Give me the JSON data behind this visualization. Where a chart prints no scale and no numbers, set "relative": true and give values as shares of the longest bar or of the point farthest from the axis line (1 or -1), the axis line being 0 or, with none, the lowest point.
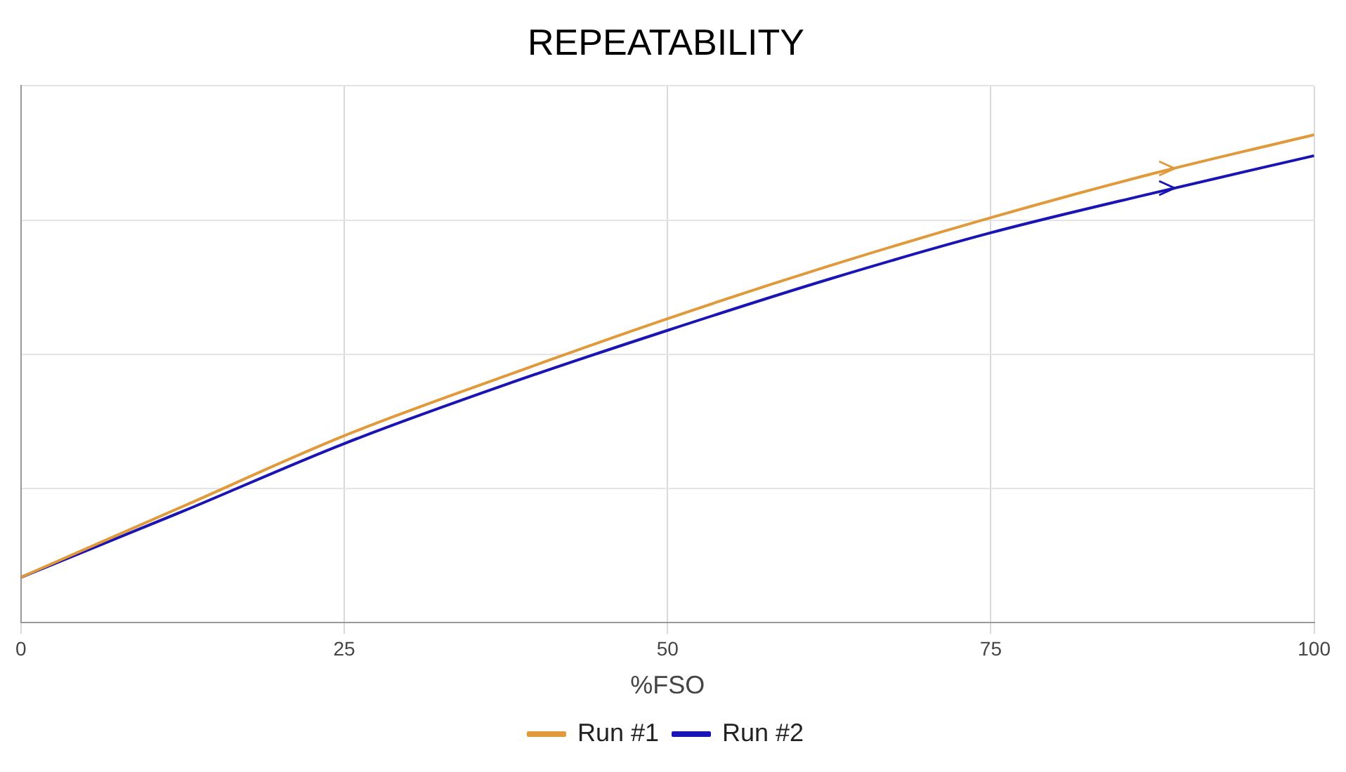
{
  "chart_data": {
    "type": "line",
    "title": "REPEATABILITY",
    "xlabel": "%FSO",
    "relative": true,
    "x": [
      0,
      12.5,
      25,
      37.5,
      50,
      62.5,
      75,
      87.5,
      100
    ],
    "xlim": [
      0,
      100
    ],
    "xticks": [
      0,
      25,
      50,
      75,
      100
    ],
    "grid": true,
    "legend": "bottom",
    "marker": "none",
    "series": [
      {
        "name": "Run #1",
        "color": "#e09a3c",
        "values": [
          0.093,
          0.238,
          0.383,
          0.506,
          0.623,
          0.731,
          0.83,
          0.92,
          1
        ]
      },
      {
        "name": "Run #2",
        "color": "#1a14b4",
        "values": [
          0.093,
          0.228,
          0.367,
          0.488,
          0.599,
          0.704,
          0.799,
          0.88,
          0.957
        ]
      }
    ]
  }
}
